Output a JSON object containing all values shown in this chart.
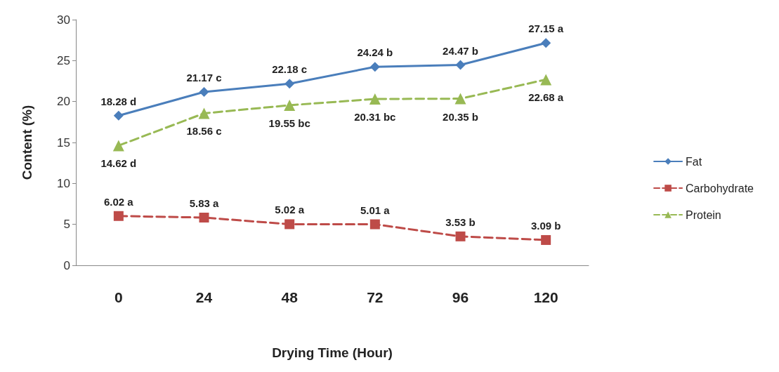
{
  "chart_data": {
    "type": "line",
    "xlabel": "Drying Time (Hour)",
    "ylabel": "Content (%)",
    "categories": [
      "0",
      "24",
      "48",
      "72",
      "96",
      "120"
    ],
    "ylim": [
      0,
      30
    ],
    "yticks": [
      0,
      5,
      10,
      15,
      20,
      25,
      30
    ],
    "grid": false,
    "legend": "right",
    "series": [
      {
        "name": "Fat",
        "color": "#4a7ebb",
        "marker": "diamond",
        "line_style": "solid",
        "values": [
          18.28,
          21.17,
          22.18,
          24.24,
          24.47,
          27.15
        ],
        "value_labels": [
          "18.28 d",
          "21.17 c",
          "22.18 c",
          "24.24 b",
          "24.47 b",
          "27.15 a"
        ]
      },
      {
        "name": "Carbohydrate",
        "color": "#be4b48",
        "marker": "square",
        "line_style": "dashed",
        "values": [
          6.02,
          5.83,
          5.02,
          5.01,
          3.53,
          3.09
        ],
        "value_labels": [
          "6.02 a",
          "5.83 a",
          "5.02 a",
          "5.01 a",
          "3.53 b",
          "3.09 b"
        ]
      },
      {
        "name": "Protein",
        "color": "#98b954",
        "marker": "triangle",
        "line_style": "dashed",
        "values": [
          14.62,
          18.56,
          19.55,
          20.31,
          20.35,
          22.68
        ],
        "value_labels": [
          "14.62 d",
          "18.56 c",
          "19.55 bc",
          "20.31 bc",
          "20.35 b",
          "22.68 a"
        ]
      }
    ]
  }
}
